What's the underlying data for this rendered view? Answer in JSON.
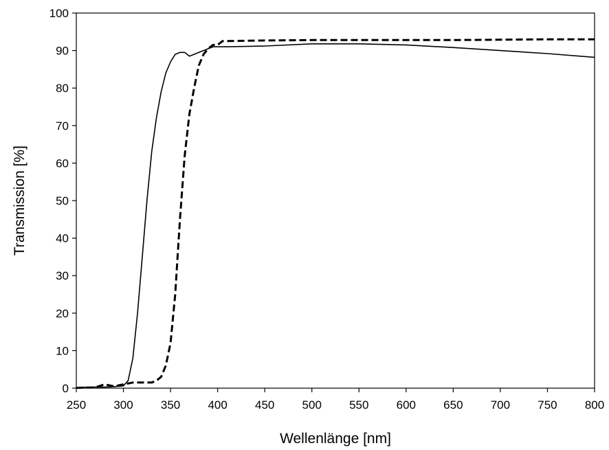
{
  "chart_data": {
    "type": "line",
    "title": "",
    "xlabel": "Wellenlänge [nm]",
    "ylabel": "Transmission [%]",
    "xlim": [
      250,
      800
    ],
    "ylim": [
      0,
      100
    ],
    "x_ticks": [
      250,
      300,
      350,
      400,
      450,
      500,
      550,
      600,
      650,
      700,
      750,
      800
    ],
    "y_ticks": [
      0,
      10,
      20,
      30,
      40,
      50,
      60,
      70,
      80,
      90,
      100
    ],
    "grid": false,
    "legend": "none",
    "series": [
      {
        "style": "solid",
        "color": "#000000",
        "x": [
          250,
          270,
          280,
          290,
          300,
          305,
          310,
          315,
          320,
          325,
          330,
          335,
          340,
          345,
          350,
          355,
          360,
          365,
          370,
          375,
          380,
          385,
          390,
          395,
          400,
          405,
          410,
          450,
          500,
          550,
          600,
          650,
          700,
          750,
          800
        ],
        "y": [
          0.2,
          0.3,
          0.3,
          0.4,
          0.6,
          2,
          8,
          20,
          35,
          50,
          63,
          72,
          79,
          84,
          87,
          89,
          89.5,
          89.5,
          88.5,
          89,
          89.5,
          90,
          90.5,
          91,
          91,
          91,
          91,
          91.2,
          91.8,
          91.8,
          91.5,
          90.8,
          90,
          89.2,
          88.2
        ]
      },
      {
        "style": "dashed",
        "color": "#000000",
        "x": [
          250,
          270,
          280,
          290,
          300,
          310,
          320,
          330,
          335,
          340,
          345,
          350,
          355,
          360,
          365,
          370,
          375,
          380,
          385,
          390,
          395,
          400,
          405,
          450,
          500,
          550,
          600,
          650,
          700,
          750,
          800
        ],
        "y": [
          0.1,
          0.2,
          1,
          0.5,
          1,
          1.5,
          1.5,
          1.5,
          2,
          3,
          6,
          12,
          25,
          45,
          62,
          73,
          80,
          86,
          89,
          90.5,
          91.5,
          91.5,
          92.5,
          92.7,
          92.8,
          92.8,
          92.8,
          92.8,
          92.9,
          93,
          93
        ]
      }
    ]
  }
}
